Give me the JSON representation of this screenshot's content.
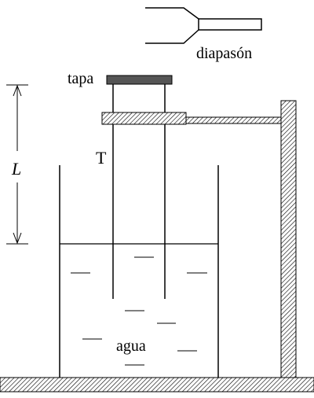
{
  "labels": {
    "tuning_fork": "diapasón",
    "lid": "tapa",
    "tube": "T",
    "length": "L",
    "water": "agua"
  },
  "colors": {
    "ink": "#000000",
    "lid_fill": "#555555",
    "background": "#ffffff"
  }
}
